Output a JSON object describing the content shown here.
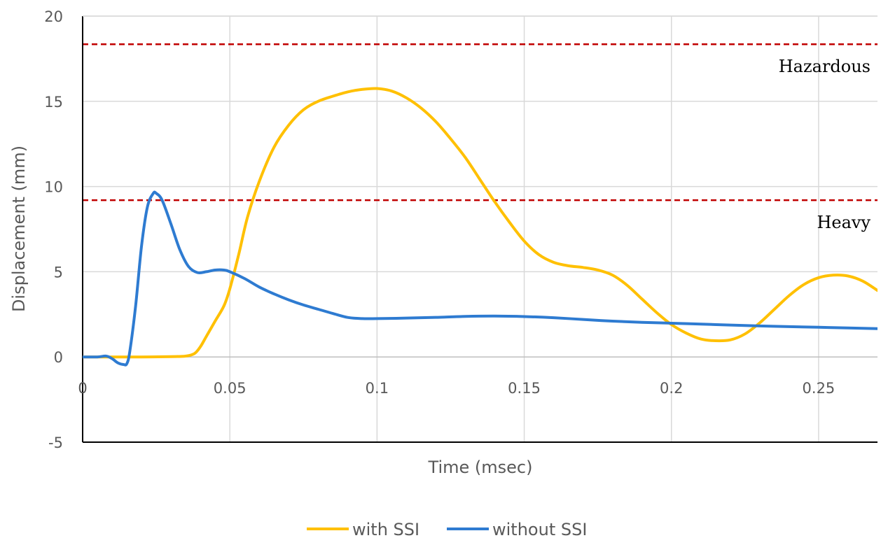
{
  "chart_data": {
    "type": "line",
    "title": "",
    "xlabel": "Time (msec)",
    "ylabel": "Displacement (mm)",
    "xlim": [
      0,
      0.27
    ],
    "ylim": [
      -5,
      20
    ],
    "x_ticks": [
      0,
      0.05,
      0.1,
      0.15,
      0.2,
      0.25
    ],
    "x_tick_labels": [
      "0",
      "0.05",
      "0.1",
      "0.15",
      "0.2",
      "0.25"
    ],
    "y_ticks": [
      -5,
      0,
      5,
      10,
      15,
      20
    ],
    "y_tick_labels": [
      "-5",
      "0",
      "5",
      "10",
      "15",
      "20"
    ],
    "grid": true,
    "legend_position": "bottom",
    "series": [
      {
        "name": "with SSI",
        "color": "#FFC000",
        "x": [
          0,
          0.01,
          0.02,
          0.03,
          0.035,
          0.038,
          0.04,
          0.042,
          0.045,
          0.048,
          0.05,
          0.053,
          0.056,
          0.06,
          0.065,
          0.07,
          0.075,
          0.08,
          0.085,
          0.09,
          0.095,
          0.1,
          0.105,
          0.11,
          0.115,
          0.12,
          0.125,
          0.13,
          0.135,
          0.14,
          0.145,
          0.15,
          0.155,
          0.16,
          0.165,
          0.17,
          0.175,
          0.18,
          0.185,
          0.19,
          0.195,
          0.2,
          0.205,
          0.21,
          0.215,
          0.22,
          0.225,
          0.23,
          0.235,
          0.24,
          0.245,
          0.25,
          0.255,
          0.26,
          0.265,
          0.27
        ],
        "y": [
          0,
          0,
          0,
          0.02,
          0.05,
          0.2,
          0.6,
          1.2,
          2.1,
          3.0,
          4.0,
          6.0,
          8.2,
          10.3,
          12.3,
          13.6,
          14.5,
          15.0,
          15.3,
          15.55,
          15.7,
          15.75,
          15.6,
          15.2,
          14.6,
          13.8,
          12.8,
          11.7,
          10.4,
          9.1,
          7.9,
          6.8,
          6.0,
          5.55,
          5.35,
          5.25,
          5.1,
          4.8,
          4.2,
          3.4,
          2.6,
          1.9,
          1.4,
          1.05,
          0.95,
          1.0,
          1.35,
          2.0,
          2.8,
          3.6,
          4.25,
          4.65,
          4.8,
          4.75,
          4.45,
          3.9
        ]
      },
      {
        "name": "without SSI",
        "color": "#2E7BD1",
        "x": [
          0,
          0.005,
          0.008,
          0.01,
          0.012,
          0.014,
          0.015,
          0.016,
          0.018,
          0.02,
          0.022,
          0.024,
          0.025,
          0.027,
          0.03,
          0.033,
          0.036,
          0.039,
          0.042,
          0.045,
          0.048,
          0.05,
          0.055,
          0.06,
          0.065,
          0.07,
          0.075,
          0.08,
          0.085,
          0.09,
          0.095,
          0.1,
          0.11,
          0.12,
          0.13,
          0.14,
          0.15,
          0.16,
          0.17,
          0.18,
          0.19,
          0.2,
          0.21,
          0.22,
          0.23,
          0.24,
          0.25,
          0.26,
          0.27
        ],
        "y": [
          0,
          0,
          0.05,
          -0.1,
          -0.35,
          -0.45,
          -0.4,
          0.3,
          3.0,
          6.5,
          8.8,
          9.6,
          9.6,
          9.2,
          7.8,
          6.3,
          5.3,
          4.95,
          5.0,
          5.1,
          5.1,
          5.0,
          4.6,
          4.1,
          3.7,
          3.35,
          3.05,
          2.8,
          2.55,
          2.32,
          2.25,
          2.25,
          2.28,
          2.32,
          2.38,
          2.4,
          2.37,
          2.3,
          2.2,
          2.1,
          2.03,
          1.98,
          1.93,
          1.87,
          1.82,
          1.78,
          1.74,
          1.7,
          1.66
        ]
      }
    ],
    "reference_lines": [
      {
        "label": "Hazardous",
        "y": 18.35,
        "color": "#C00000",
        "style": "dashed"
      },
      {
        "label": "Heavy",
        "y": 9.2,
        "color": "#C00000",
        "style": "dashed"
      }
    ]
  }
}
